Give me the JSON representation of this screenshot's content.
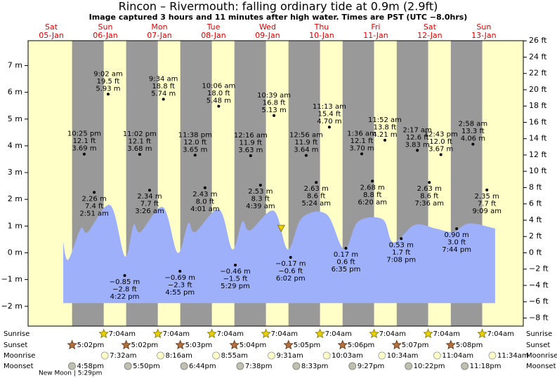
{
  "chart_data": {
    "type": "area",
    "title": "Rincon – Rivermouth: falling  ordinary tide at 0.9m (2.9ft)",
    "subtitle": "Image captured 3 hours and 11 minutes after high water. Times are PST (UTC −8.0hrs)",
    "xlim": [
      -2.5,
      217.3
    ],
    "ylim": [
      -2.74,
      7.93
    ],
    "y2lim": [
      -8.99,
      26.02
    ],
    "yticks": [
      {
        "value": -2,
        "label": "−2 m"
      },
      {
        "value": -1,
        "label": "−1 m"
      },
      {
        "value": 0,
        "label": "0 m"
      },
      {
        "value": 1,
        "label": "1 m"
      },
      {
        "value": 2,
        "label": "2 m"
      },
      {
        "value": 3,
        "label": "3 m"
      },
      {
        "value": 4,
        "label": "4 m"
      },
      {
        "value": 5,
        "label": "5 m"
      },
      {
        "value": 6,
        "label": "6 m"
      },
      {
        "value": 7,
        "label": "7 m"
      }
    ],
    "y2ticks": [
      {
        "value": -8,
        "label": "−8 ft"
      },
      {
        "value": -6,
        "label": "−6 ft"
      },
      {
        "value": -4,
        "label": "−4 ft"
      },
      {
        "value": -2,
        "label": "−2 ft"
      },
      {
        "value": 0,
        "label": "0 ft"
      },
      {
        "value": 2,
        "label": "2 ft"
      },
      {
        "value": 4,
        "label": "4 ft"
      },
      {
        "value": 6,
        "label": "6 ft"
      },
      {
        "value": 8,
        "label": "8 ft"
      },
      {
        "value": 10,
        "label": "10 ft"
      },
      {
        "value": 12,
        "label": "12 ft"
      },
      {
        "value": 14,
        "label": "14 ft"
      },
      {
        "value": 16,
        "label": "16 ft"
      },
      {
        "value": 18,
        "label": "18 ft"
      },
      {
        "value": 20,
        "label": "20 ft"
      },
      {
        "value": 22,
        "label": "22 ft"
      },
      {
        "value": 24,
        "label": "24 ft"
      },
      {
        "value": 26,
        "label": "26 ft"
      }
    ],
    "days": [
      {
        "weekday": "Sat",
        "date": "05-Jan"
      },
      {
        "weekday": "Sun",
        "date": "06-Jan"
      },
      {
        "weekday": "Mon",
        "date": "07-Jan"
      },
      {
        "weekday": "Tue",
        "date": "08-Jan"
      },
      {
        "weekday": "Wed",
        "date": "09-Jan"
      },
      {
        "weekday": "Thu",
        "date": "10-Jan"
      },
      {
        "weekday": "Fri",
        "date": "11-Jan"
      },
      {
        "weekday": "Sat",
        "date": "12-Jan"
      },
      {
        "weekday": "Sun",
        "date": "13-Jan"
      }
    ],
    "curve": {
      "color": "#9fb0fa",
      "base": -1.88,
      "x": [
        13.1,
        15.3,
        20.9,
        24.0,
        34.0,
        40.5,
        44.3,
        47.4,
        57.4,
        63.9,
        68.6,
        71.7,
        82.3,
        88.2,
        92.6,
        96.0,
        106.6,
        112.8,
        119.1,
        130.0,
        137.8,
        144.0,
        154.9,
        159.6,
        169.0,
        178.3,
        186.1,
        193.3,
        204.8
      ],
      "values": [
        0.39,
        -0.26,
        0.91,
        0.78,
        1.78,
        -0.13,
        1.04,
        0.78,
        1.7,
        0.0,
        1.1,
        0.78,
        1.62,
        0.13,
        1.17,
        0.84,
        1.57,
        0.13,
        1.31,
        1.44,
        0.13,
        1.17,
        1.25,
        0.39,
        1.04,
        0.91,
        0.78,
        1.1,
        0.91
      ]
    },
    "extremes": [
      {
        "time": "10:25 pm",
        "ft_label": "12.1 ft",
        "m_label": "3.69 m",
        "t": 22.42,
        "value": 3.69
      },
      {
        "time": "2:51 am",
        "ft_label": "7.4 ft",
        "m_label": "2.26 m",
        "t": 26.85,
        "value": 2.26
      },
      {
        "time": "9:02 am",
        "ft_label": "19.5 ft",
        "m_label": "5.93 m",
        "t": 33.03,
        "value": 5.93
      },
      {
        "time": "4:22 pm",
        "ft_label": "−2.8 ft",
        "m_label": "−0.85 m",
        "t": 40.37,
        "value": -0.85
      },
      {
        "time": "11:02 pm",
        "ft_label": "12.1 ft",
        "m_label": "3.68 m",
        "t": 47.03,
        "value": 3.68
      },
      {
        "time": "3:26 am",
        "ft_label": "7.7 ft",
        "m_label": "2.34 m",
        "t": 51.43,
        "value": 2.34
      },
      {
        "time": "9:34 am",
        "ft_label": "18.8 ft",
        "m_label": "5.74 m",
        "t": 57.57,
        "value": 5.74
      },
      {
        "time": "4:55 pm",
        "ft_label": "−2.3 ft",
        "m_label": "−0.69 m",
        "t": 64.92,
        "value": -0.69
      },
      {
        "time": "11:38 pm",
        "ft_label": "12.0 ft",
        "m_label": "3.65 m",
        "t": 71.63,
        "value": 3.65
      },
      {
        "time": "4:01 am",
        "ft_label": "8.0 ft",
        "m_label": "2.43 m",
        "t": 76.02,
        "value": 2.43
      },
      {
        "time": "10:06 am",
        "ft_label": "18.0 ft",
        "m_label": "5.48 m",
        "t": 82.1,
        "value": 5.48
      },
      {
        "time": "5:29 pm",
        "ft_label": "−1.5 ft",
        "m_label": "−0.46 m",
        "t": 89.48,
        "value": -0.46
      },
      {
        "time": "12:16 am",
        "ft_label": "11.9 ft",
        "m_label": "3.63 m",
        "t": 96.27,
        "value": 3.63
      },
      {
        "time": "4:39 am",
        "ft_label": "8.3 ft",
        "m_label": "2.53 m",
        "t": 100.65,
        "value": 2.53
      },
      {
        "time": "10:39 am",
        "ft_label": "16.8 ft",
        "m_label": "5.13 m",
        "t": 106.65,
        "value": 5.13
      },
      {
        "time": "6:02 pm",
        "ft_label": "−0.6 ft",
        "m_label": "−0.17 m",
        "t": 114.03,
        "value": -0.17
      },
      {
        "time": "12:56 am",
        "ft_label": "11.9 ft",
        "m_label": "3.64 m",
        "t": 120.93,
        "value": 3.64
      },
      {
        "time": "5:24 am",
        "ft_label": "8.6 ft",
        "m_label": "2.63 m",
        "t": 125.4,
        "value": 2.63
      },
      {
        "time": "11:13 am",
        "ft_label": "15.4 ft",
        "m_label": "4.70 m",
        "t": 131.22,
        "value": 4.7
      },
      {
        "time": "6:35 pm",
        "ft_label": "0.6 ft",
        "m_label": "0.17 m",
        "t": 138.58,
        "value": 0.17
      },
      {
        "time": "1:36 am",
        "ft_label": "12.1 ft",
        "m_label": "3.70 m",
        "t": 145.6,
        "value": 3.7
      },
      {
        "time": "6:20 am",
        "ft_label": "8.8 ft",
        "m_label": "2.68 m",
        "t": 150.33,
        "value": 2.68
      },
      {
        "time": "11:52 am",
        "ft_label": "13.8 ft",
        "m_label": "4.21 m",
        "t": 155.87,
        "value": 4.21
      },
      {
        "time": "7:08 pm",
        "ft_label": "1.7 ft",
        "m_label": "0.53 m",
        "t": 163.13,
        "value": 0.53
      },
      {
        "time": "2:17 am",
        "ft_label": "12.6 ft",
        "m_label": "3.83 m",
        "t": 170.28,
        "value": 3.83
      },
      {
        "time": "7:36 am",
        "ft_label": "8.6 ft",
        "m_label": "2.63 m",
        "t": 175.6,
        "value": 2.63
      },
      {
        "time": "12:43 pm",
        "ft_label": "12.0 ft",
        "m_label": "3.67 m",
        "t": 180.72,
        "value": 3.67
      },
      {
        "time": "7:44 pm",
        "ft_label": "3.0 ft",
        "m_label": "0.90 m",
        "t": 187.73,
        "value": 0.9
      },
      {
        "time": "2:58 am",
        "ft_label": "13.3 ft",
        "m_label": "4.06 m",
        "t": 194.97,
        "value": 4.06
      },
      {
        "time": "9:09 am",
        "ft_label": "7.7 ft",
        "m_label": "2.35 m",
        "t": 201.15,
        "value": 2.35
      }
    ],
    "now": {
      "t": 109.83,
      "value": 0.9
    },
    "sunrise": {
      "name": "Sunrise",
      "events": [
        {
          "t": 31.07,
          "label": "7:04am"
        },
        {
          "t": 55.07,
          "label": "7:04am"
        },
        {
          "t": 79.07,
          "label": "7:04am"
        },
        {
          "t": 103.07,
          "label": "7:04am"
        },
        {
          "t": 127.07,
          "label": "7:04am"
        },
        {
          "t": 151.07,
          "label": "7:04am"
        },
        {
          "t": 175.07,
          "label": "7:04am"
        },
        {
          "t": 199.07,
          "label": "7:04am"
        }
      ]
    },
    "sunset": {
      "name": "Sunset",
      "events": [
        {
          "t": 17.03,
          "label": "5:02pm"
        },
        {
          "t": 41.03,
          "label": "5:02pm"
        },
        {
          "t": 65.05,
          "label": "5:03pm"
        },
        {
          "t": 89.07,
          "label": "5:04pm"
        },
        {
          "t": 113.08,
          "label": "5:05pm"
        },
        {
          "t": 137.1,
          "label": "5:06pm"
        },
        {
          "t": 161.12,
          "label": "5:07pm"
        },
        {
          "t": 185.13,
          "label": "5:08pm"
        }
      ]
    },
    "moonrise": {
      "name": "Moonrise",
      "events": [
        {
          "t": 31.53,
          "label": "7:32am"
        },
        {
          "t": 56.27,
          "label": "8:16am"
        },
        {
          "t": 80.92,
          "label": "8:55am"
        },
        {
          "t": 105.52,
          "label": "9:31am"
        },
        {
          "t": 130.05,
          "label": "10:03am"
        },
        {
          "t": 154.57,
          "label": "10:34am"
        },
        {
          "t": 179.07,
          "label": "11:04am"
        },
        {
          "t": 203.57,
          "label": "11:34am"
        }
      ]
    },
    "moonset": {
      "name": "Moonset",
      "events": [
        {
          "t": 16.97,
          "label": "4:58pm"
        },
        {
          "t": 41.83,
          "label": "5:50pm"
        },
        {
          "t": 66.73,
          "label": "6:44pm"
        },
        {
          "t": 91.63,
          "label": "7:38pm"
        },
        {
          "t": 116.55,
          "label": "8:33pm"
        },
        {
          "t": 141.45,
          "label": "9:27pm"
        },
        {
          "t": 166.37,
          "label": "10:22pm"
        },
        {
          "t": 191.3,
          "label": "11:18pm"
        }
      ]
    },
    "moon_phase": "New Moon | 5:29pm"
  }
}
